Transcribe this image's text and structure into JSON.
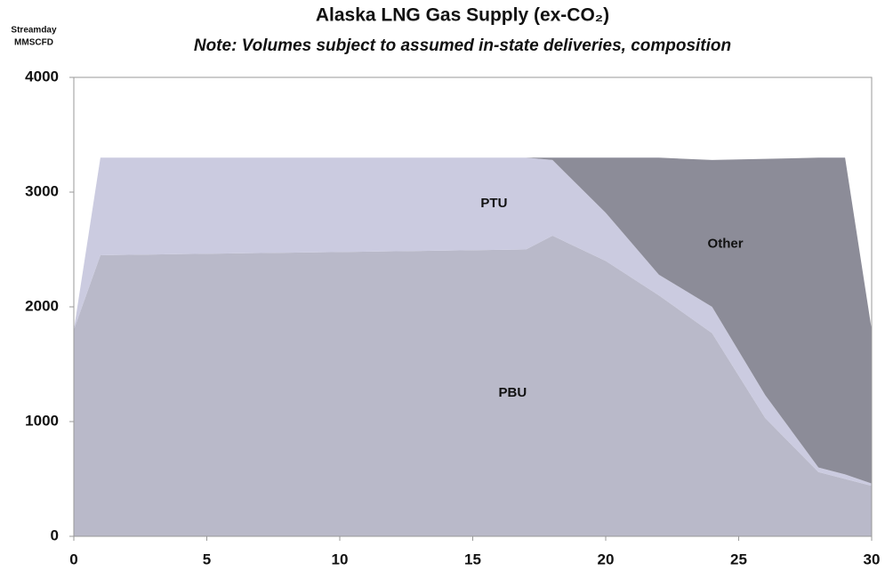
{
  "chart_data": {
    "type": "stacked_area",
    "title": "Alaska LNG Gas Supply (ex-CO₂)",
    "subtitle": "Note: Volumes subject to assumed in-state deliveries, composition",
    "y_label": [
      "Streamday",
      "MMSCFD"
    ],
    "x": [
      0,
      1,
      17,
      18,
      20,
      22,
      24,
      26,
      28,
      29,
      30
    ],
    "series": [
      {
        "name": "PBU",
        "color": "#b9b9c9",
        "values": [
          1800,
          2450,
          2500,
          2620,
          2400,
          2100,
          1770,
          1030,
          560,
          500,
          440
        ]
      },
      {
        "name": "PTU",
        "color": "#cbcbe0",
        "values": [
          0,
          850,
          800,
          660,
          420,
          180,
          230,
          200,
          40,
          40,
          20
        ]
      },
      {
        "name": "Other",
        "color": "#8c8c98",
        "values": [
          0,
          0,
          0,
          20,
          480,
          1020,
          1280,
          2060,
          2700,
          2760,
          1340
        ]
      }
    ],
    "xlim": [
      0,
      30
    ],
    "xticks": [
      0,
      5,
      10,
      15,
      20,
      25,
      30
    ],
    "ylim": [
      0,
      4000
    ],
    "yticks": [
      0,
      1000,
      2000,
      3000,
      4000
    ]
  }
}
